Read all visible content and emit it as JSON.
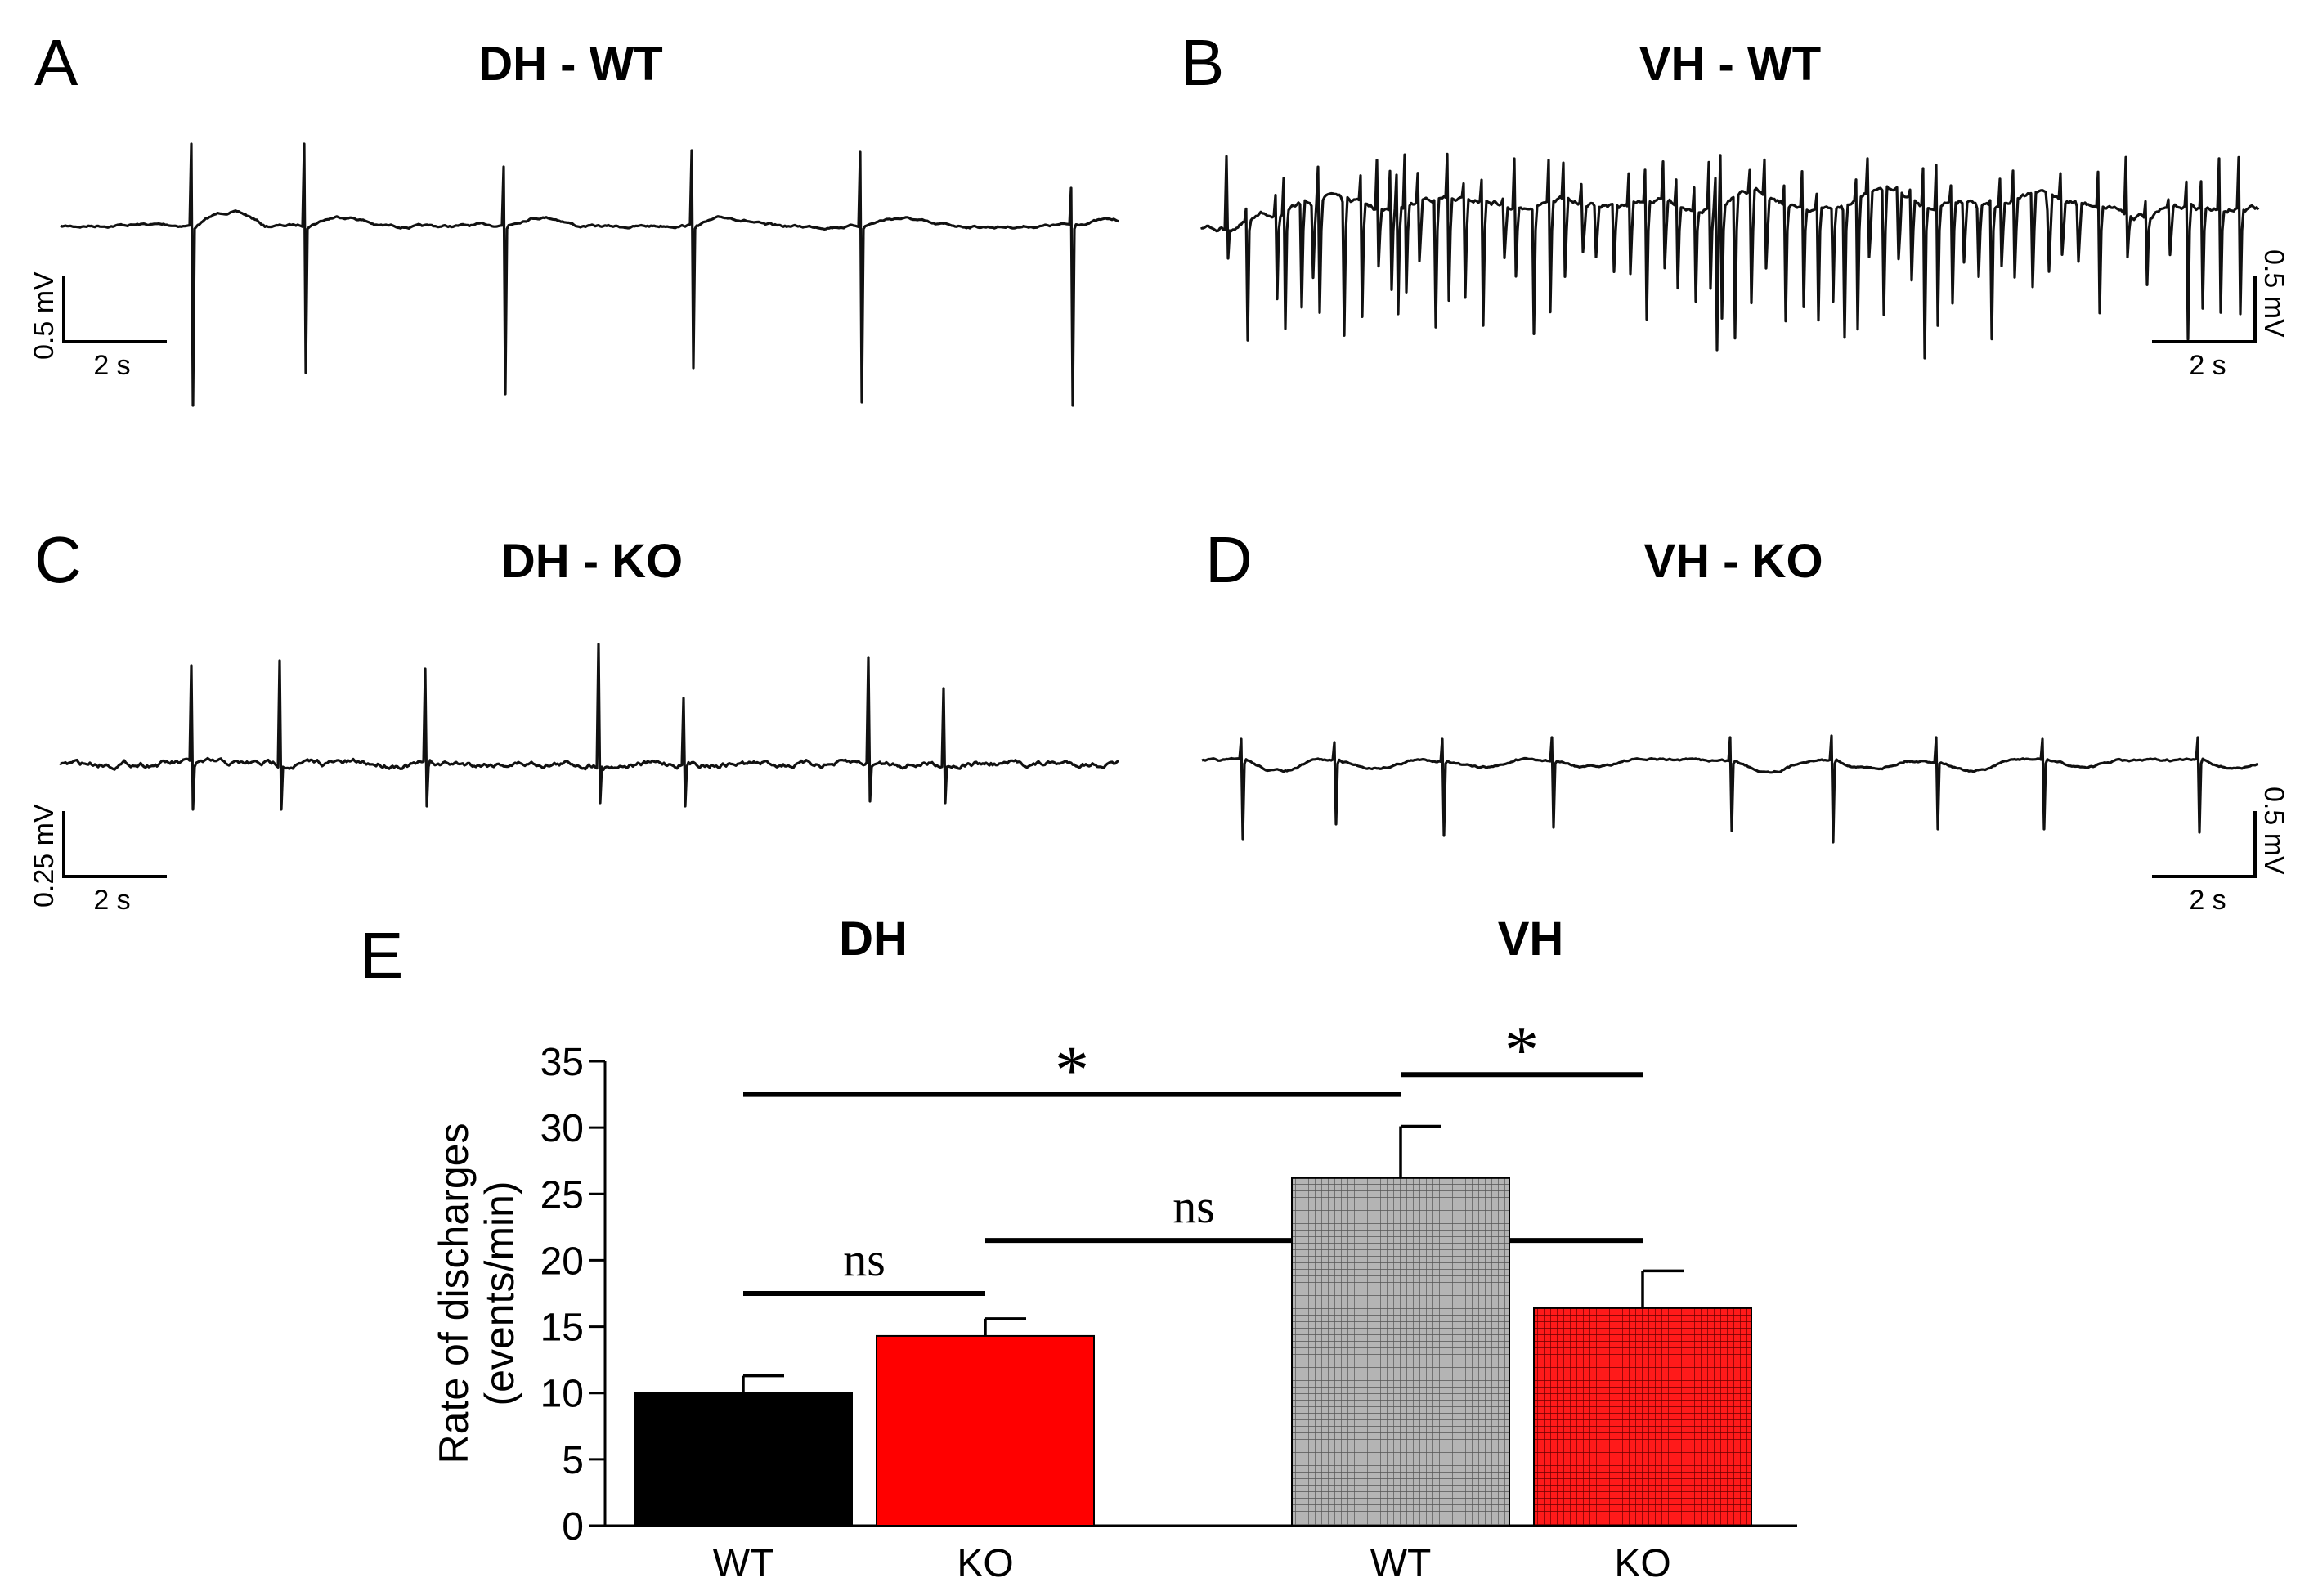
{
  "panels": {
    "A": {
      "letter": "A",
      "title": "DH - WT",
      "scale_v": "0.5 mV",
      "scale_t": "2 s"
    },
    "B": {
      "letter": "B",
      "title": "VH - WT",
      "scale_v": "0.5 mV",
      "scale_t": "2 s"
    },
    "C": {
      "letter": "C",
      "title": "DH - KO",
      "scale_v": "0.25 mV",
      "scale_t": "2 s"
    },
    "D": {
      "letter": "D",
      "title": "VH - KO",
      "scale_v": "0.5 mV",
      "scale_t": "2 s"
    },
    "E": {
      "letter": "E",
      "group_title_dh": "DH",
      "group_title_vh": "VH"
    }
  },
  "colors": {
    "wt": "#000000",
    "ko": "#ff0000",
    "wt_vh": "#a6a6a6",
    "ko_vh": "#e00000"
  },
  "chart_data": {
    "type": "bar",
    "title": "",
    "ylabel": "Rate of discharges\n(events/min)",
    "ylabel_lines": [
      "Rate of discharges",
      "(events/min)"
    ],
    "ylim": [
      0,
      35
    ],
    "yticks": [
      0,
      5,
      10,
      15,
      20,
      25,
      30,
      35
    ],
    "groups": [
      "DH",
      "VH"
    ],
    "categories": [
      "WT",
      "KO",
      "WT",
      "KO"
    ],
    "values": [
      10,
      14.3,
      26.2,
      16.4
    ],
    "errors": [
      1.3,
      1.3,
      3.9,
      2.8
    ],
    "patterns": [
      "solid",
      "solid",
      "grid",
      "grid"
    ],
    "significance": [
      {
        "label": "ns",
        "from": 0,
        "to": 1,
        "y": 17.5
      },
      {
        "label": "ns",
        "from": 1,
        "to": 3,
        "y": 21.5
      },
      {
        "label": "*",
        "from": 0,
        "to": 2,
        "y": 32.5
      },
      {
        "label": "*",
        "from": 2,
        "to": 3,
        "y": 34
      }
    ]
  }
}
